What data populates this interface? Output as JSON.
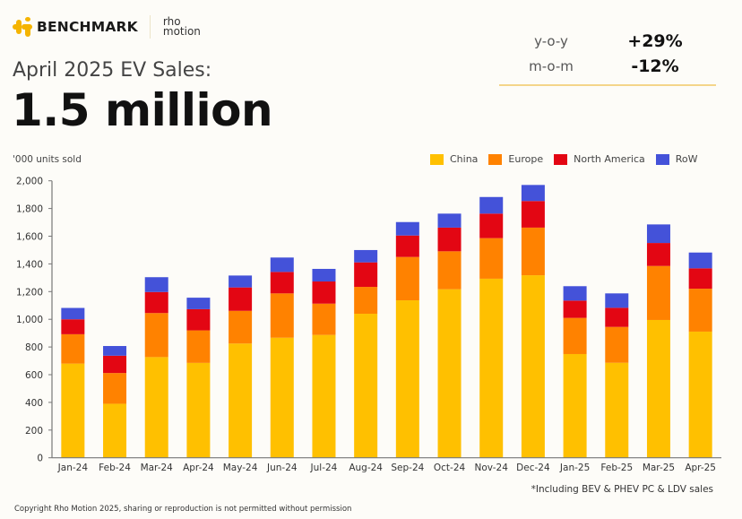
{
  "brand": {
    "logo_primary": "BENCHMARK",
    "logo_secondary_line1": "rho",
    "logo_secondary_line2": "motion"
  },
  "header": {
    "subtitle": "April 2025 EV Sales:",
    "headline": "1.5 million"
  },
  "kpis": [
    {
      "label": "y-o-y",
      "value": "+29%"
    },
    {
      "label": "m-o-m",
      "value": "-12%"
    }
  ],
  "footer": {
    "note": "*Including BEV & PHEV PC & LDV sales",
    "copyright": "Copyright Rho Motion 2025, sharing or reproduction is not permitted without permission"
  },
  "chart_data": {
    "type": "bar",
    "stacked": true,
    "title": "April 2025 EV Sales",
    "ylabel": "'000 units sold",
    "xlabel": "",
    "ylim": [
      0,
      2000
    ],
    "yticks": [
      0,
      200,
      400,
      600,
      800,
      1000,
      1200,
      1400,
      1600,
      1800,
      2000
    ],
    "ytick_labels": [
      "0",
      "200",
      "400",
      "600",
      "800",
      "1,000",
      "1,200",
      "1,400",
      "1,600",
      "1,800",
      "2,000"
    ],
    "grid": false,
    "legend_position": "top-right",
    "categories": [
      "Jan-24",
      "Feb-24",
      "Mar-24",
      "Apr-24",
      "May-24",
      "Jun-24",
      "Jul-24",
      "Aug-24",
      "Sep-24",
      "Oct-24",
      "Nov-24",
      "Dec-24",
      "Jan-25",
      "Feb-25",
      "Mar-25",
      "Apr-25"
    ],
    "series": [
      {
        "name": "China",
        "color": "#ffc000",
        "values": [
          680,
          390,
          727,
          685,
          825,
          867,
          887,
          1040,
          1137,
          1217,
          1293,
          1318,
          749,
          686,
          995,
          911
        ]
      },
      {
        "name": "Europe",
        "color": "#ff8200",
        "values": [
          212,
          222,
          318,
          235,
          236,
          320,
          226,
          194,
          313,
          274,
          293,
          344,
          261,
          259,
          390,
          310
        ]
      },
      {
        "name": "North America",
        "color": "#e30613",
        "values": [
          108,
          125,
          152,
          153,
          169,
          155,
          160,
          177,
          155,
          171,
          177,
          192,
          125,
          138,
          166,
          147
        ]
      },
      {
        "name": "RoW",
        "color": "#4452d9",
        "values": [
          82,
          70,
          107,
          83,
          86,
          104,
          91,
          89,
          97,
          101,
          120,
          116,
          104,
          104,
          134,
          114
        ]
      }
    ]
  }
}
